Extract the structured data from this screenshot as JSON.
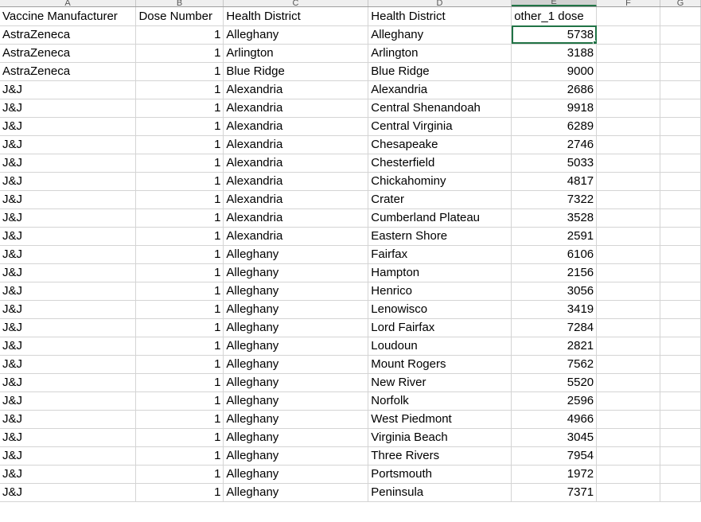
{
  "sheet": {
    "column_letters": [
      "A",
      "B",
      "C",
      "D",
      "E",
      "F",
      "G"
    ],
    "active_column": "E",
    "headers": [
      "Vaccine Manufacturer",
      "Dose Number",
      "Health District",
      "Health District",
      "other_1 dose"
    ],
    "rows": [
      [
        "AstraZeneca",
        "1",
        "Alleghany",
        "Alleghany",
        "5738"
      ],
      [
        "AstraZeneca",
        "1",
        "Arlington",
        "Arlington",
        "3188"
      ],
      [
        "AstraZeneca",
        "1",
        "Blue Ridge",
        "Blue Ridge",
        "9000"
      ],
      [
        "J&J",
        "1",
        "Alexandria",
        "Alexandria",
        "2686"
      ],
      [
        "J&J",
        "1",
        "Alexandria",
        "Central Shenandoah",
        "9918"
      ],
      [
        "J&J",
        "1",
        "Alexandria",
        "Central Virginia",
        "6289"
      ],
      [
        "J&J",
        "1",
        "Alexandria",
        "Chesapeake",
        "2746"
      ],
      [
        "J&J",
        "1",
        "Alexandria",
        "Chesterfield",
        "5033"
      ],
      [
        "J&J",
        "1",
        "Alexandria",
        "Chickahominy",
        "4817"
      ],
      [
        "J&J",
        "1",
        "Alexandria",
        "Crater",
        "7322"
      ],
      [
        "J&J",
        "1",
        "Alexandria",
        "Cumberland Plateau",
        "3528"
      ],
      [
        "J&J",
        "1",
        "Alexandria",
        "Eastern Shore",
        "2591"
      ],
      [
        "J&J",
        "1",
        "Alleghany",
        "Fairfax",
        "6106"
      ],
      [
        "J&J",
        "1",
        "Alleghany",
        "Hampton",
        "2156"
      ],
      [
        "J&J",
        "1",
        "Alleghany",
        "Henrico",
        "3056"
      ],
      [
        "J&J",
        "1",
        "Alleghany",
        "Lenowisco",
        "3419"
      ],
      [
        "J&J",
        "1",
        "Alleghany",
        "Lord Fairfax",
        "7284"
      ],
      [
        "J&J",
        "1",
        "Alleghany",
        "Loudoun",
        "2821"
      ],
      [
        "J&J",
        "1",
        "Alleghany",
        "Mount Rogers",
        "7562"
      ],
      [
        "J&J",
        "1",
        "Alleghany",
        "New River",
        "5520"
      ],
      [
        "J&J",
        "1",
        "Alleghany",
        "Norfolk",
        "2596"
      ],
      [
        "J&J",
        "1",
        "Alleghany",
        "West Piedmont",
        "4966"
      ],
      [
        "J&J",
        "1",
        "Alleghany",
        "Virginia Beach",
        "3045"
      ],
      [
        "J&J",
        "1",
        "Alleghany",
        "Three Rivers",
        "7954"
      ],
      [
        "J&J",
        "1",
        "Alleghany",
        "Portsmouth",
        "1972"
      ],
      [
        "J&J",
        "1",
        "Alleghany",
        "Peninsula",
        "7371"
      ]
    ],
    "selected_cell": {
      "row": 0,
      "col": 4
    },
    "accent_color": "#217346"
  }
}
